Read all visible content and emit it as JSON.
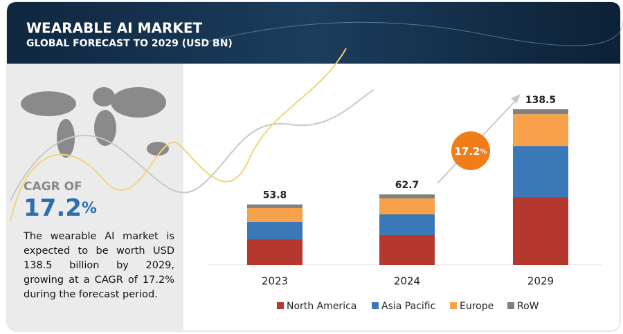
{
  "header": {
    "title": "WEARABLE AI MARKET",
    "subtitle": "GLOBAL FORECAST TO 2029 (USD BN)"
  },
  "side_panel": {
    "cagr_label": "CAGR OF",
    "cagr_value": "17.2",
    "cagr_unit": "%",
    "description": "The wearable AI market is expected to be worth USD 138.5 billion by 2029, growing at a CAGR of 17.2% during the forecast period."
  },
  "chart_data": {
    "type": "stacked_bar",
    "categories": [
      "2023",
      "2024",
      "2029"
    ],
    "series": [
      {
        "name": "North America",
        "color": "#b5382f",
        "values": [
          22.8,
          26.5,
          60.3
        ]
      },
      {
        "name": "Asia Pacific",
        "color": "#3a78b8",
        "values": [
          15.4,
          18.5,
          45.5
        ]
      },
      {
        "name": "Europe",
        "color": "#f7a14a",
        "values": [
          12.3,
          14.2,
          28.3
        ]
      },
      {
        "name": "RoW",
        "color": "#808080",
        "values": [
          3.3,
          3.5,
          4.4
        ]
      }
    ],
    "totals": [
      53.8,
      62.7,
      138.5
    ],
    "cagr_badge": {
      "value": "17.2",
      "unit": "%"
    }
  }
}
